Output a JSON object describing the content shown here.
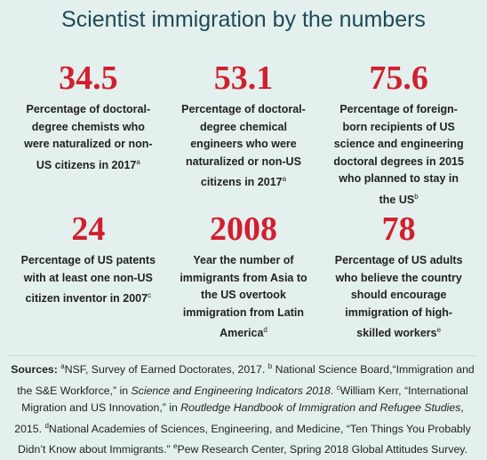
{
  "title": "Scientist immigration by the numbers",
  "stats": [
    {
      "value": "34.5",
      "description": "Percentage of doctoral-degree chemists who were naturalized or non-US citizens in 2017",
      "note": "a"
    },
    {
      "value": "53.1",
      "description": "Percentage of doctoral-degree chemical engineers who were naturalized or non-US citizens in 2017",
      "note": "a"
    },
    {
      "value": "75.6",
      "description": "Percentage of foreign-born recipients of US science and engineering doctoral degrees in 2015 who planned to stay in the US",
      "note": "b"
    },
    {
      "value": "24",
      "description": "Percentage of US patents with at least one non-US citizen inventor in 2007",
      "note": "c"
    },
    {
      "value": "2008",
      "description": "Year the number of immigrants from Asia to the US overtook immigration from Latin America",
      "note": "d"
    },
    {
      "value": "78",
      "description": "Percentage of US adults who believe the country should encourage immigration of high-skilled workers",
      "note": "e"
    }
  ],
  "sources": {
    "parts": [
      "Sources:",
      "a",
      "NSF, Survey of Earned Doctorates, 2017. ",
      "b",
      " National Science Board,“Immigration and the S&E Workforce,” in ",
      "Science and Engineering Indicators 2018",
      ". ",
      "c",
      "William Kerr, “International Migration and US Innovation,” in ",
      "Routledge Handbook of Immigration and Refugee Studies",
      ", 2015. ",
      "d",
      "National Academies of Sciences, Engineering, and Medicine, “Ten Things You Probably Didn’t Know about Immigrants.” ",
      "e",
      "Pew Research Center, Spring 2018 Global Attitudes Survey."
    ]
  }
}
